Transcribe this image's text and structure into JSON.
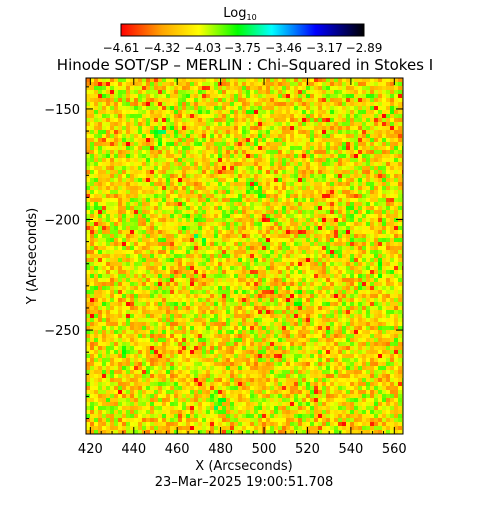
{
  "chart_data": {
    "type": "heatmap",
    "title": "Hinode SOT/SP – MERLIN : Chi–Squared in Stokes I",
    "xlabel": "X (Arcseconds)",
    "ylabel": "Y (Arcseconds)",
    "xlim": [
      418,
      564
    ],
    "ylim": [
      -297,
      -136
    ],
    "x_ticks": [
      420,
      440,
      460,
      480,
      500,
      520,
      540,
      560
    ],
    "x_tick_labels": [
      "420",
      "440",
      "460",
      "480",
      "500",
      "520",
      "540",
      "560"
    ],
    "y_ticks": [
      -150,
      -200,
      -250
    ],
    "y_tick_labels": [
      "−150",
      "−200",
      "−250"
    ],
    "colorbar": {
      "label_base": "Log",
      "label_sub": "10",
      "ticks": [
        -4.61,
        -4.32,
        -4.03,
        -3.75,
        -3.46,
        -3.17,
        -2.89
      ],
      "tick_labels": [
        "−4.61",
        "−4.32",
        "−4.03",
        "−3.75",
        "−3.46",
        "−3.17",
        "−2.89"
      ],
      "colormap": [
        "#ff0000",
        "#ffa500",
        "#ffff00",
        "#00ff00",
        "#00ffff",
        "#0000ff",
        "#000000"
      ]
    },
    "typical_value": -4.1,
    "value_range": [
      -4.61,
      -2.89
    ],
    "timestamp": "23–Mar–2025 19:00:51.708"
  }
}
